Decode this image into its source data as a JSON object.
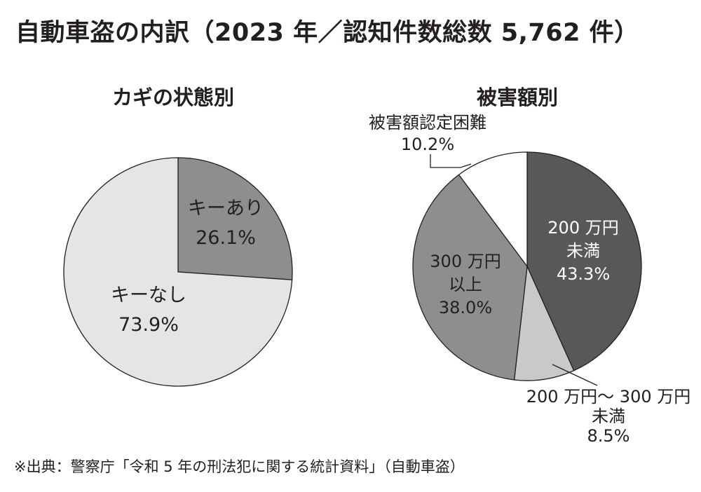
{
  "title": "自動車盗の内訳（2023 年／認知件数総数 5,762 件）",
  "source": "※出典：警察庁「令和 5 年の刑法犯に関する統計資料」（自動車盗）",
  "chart_data": [
    {
      "type": "pie",
      "title": "カギの状態別",
      "start": "12 o'clock",
      "direction": "clockwise",
      "slices": [
        {
          "label_lines": [
            "キーあり"
          ],
          "value": 26.1,
          "value_label": "26.1%",
          "color": "#8e8e90"
        },
        {
          "label_lines": [
            "キーなし"
          ],
          "value": 73.9,
          "value_label": "73.9%",
          "color": "#e5e5e6"
        }
      ]
    },
    {
      "type": "pie",
      "title": "被害額別",
      "start": "12 o'clock",
      "direction": "clockwise",
      "slices": [
        {
          "label_lines": [
            "200 万円",
            "未満"
          ],
          "value": 43.3,
          "value_label": "43.3%",
          "color": "#58585a"
        },
        {
          "label_lines": [
            "200 万円～ 300 万円",
            "未満"
          ],
          "value": 8.5,
          "value_label": "8.5%",
          "color": "#c9c9ca"
        },
        {
          "label_lines": [
            "300 万円",
            "以上"
          ],
          "value": 38.0,
          "value_label": "38.0%",
          "color": "#8e8e90"
        },
        {
          "label_lines": [
            "被害額認定困難"
          ],
          "value": 10.2,
          "value_label": "10.2%",
          "color": "#ffffff"
        }
      ]
    }
  ]
}
